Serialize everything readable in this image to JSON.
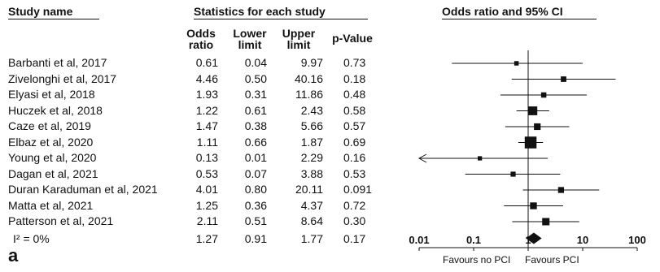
{
  "headers": {
    "study_name": "Study name",
    "statistics": "Statistics for each study",
    "plot": "Odds ratio and 95% CI",
    "col_odds": [
      "Odds",
      "ratio"
    ],
    "col_lower": [
      "Lower",
      "limit"
    ],
    "col_upper": [
      "Upper",
      "limit"
    ],
    "col_p": "p-Value"
  },
  "panel_label": "a",
  "favours_left": "Favours no PCI",
  "favours_right": "Favours PCI",
  "summary_label": "I² = 0%",
  "chart_data": {
    "type": "forest",
    "x_scale": "log",
    "xlim": [
      0.01,
      100
    ],
    "x_ticks": [
      0.01,
      0.1,
      1,
      10,
      100
    ],
    "x_tick_labels": [
      "0.01",
      "0.1",
      "1",
      "10",
      "100"
    ],
    "reference_line": 1,
    "studies": [
      {
        "name": "Barbanti et al, 2017",
        "or": "0.61",
        "lower": "0.04",
        "upper": "9.97",
        "p": "0.73"
      },
      {
        "name": "Zivelonghi et al, 2017",
        "or": "4.46",
        "lower": "0.50",
        "upper": "40.16",
        "p": "0.18"
      },
      {
        "name": "Elyasi et al, 2018",
        "or": "1.93",
        "lower": "0.31",
        "upper": "11.86",
        "p": "0.48"
      },
      {
        "name": "Huczek et al, 2018",
        "or": "1.22",
        "lower": "0.61",
        "upper": "2.43",
        "p": "0.58"
      },
      {
        "name": "Caze et al, 2019",
        "or": "1.47",
        "lower": "0.38",
        "upper": "5.66",
        "p": "0.57"
      },
      {
        "name": "Elbaz et al, 2020",
        "or": "1.11",
        "lower": "0.66",
        "upper": "1.87",
        "p": "0.69"
      },
      {
        "name": "Young et al, 2020",
        "or": "0.13",
        "lower": "0.01",
        "upper": "2.29",
        "p": "0.16"
      },
      {
        "name": "Dagan et al, 2021",
        "or": "0.53",
        "lower": "0.07",
        "upper": "3.88",
        "p": "0.53"
      },
      {
        "name": "Duran Karaduman et al, 2021",
        "or": "4.01",
        "lower": "0.80",
        "upper": "20.11",
        "p": "0.091"
      },
      {
        "name": "Matta et al, 2021",
        "or": "1.25",
        "lower": "0.36",
        "upper": "4.37",
        "p": "0.72"
      },
      {
        "name": "Patterson et al, 2021",
        "or": "2.11",
        "lower": "0.51",
        "upper": "8.64",
        "p": "0.30"
      }
    ],
    "summary": {
      "or": "1.27",
      "lower": "0.91",
      "upper": "1.77",
      "p": "0.17"
    },
    "weights": [
      0.6,
      1.4,
      1.2,
      6,
      2.6,
      13,
      0.5,
      1.0,
      1.8,
      2.8,
      3.5
    ]
  }
}
